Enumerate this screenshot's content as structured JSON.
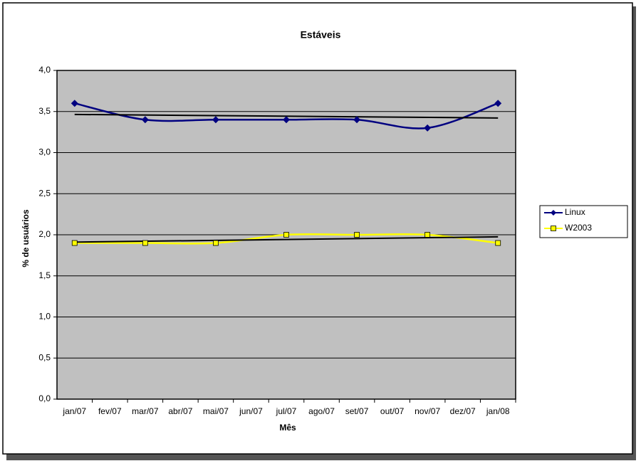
{
  "chart_data": {
    "type": "line",
    "title": "Estáveis",
    "y_label": "% de usuários",
    "x_label": "Mês",
    "xticks": [
      {
        "value": "2007-01",
        "label": "jan/07"
      },
      {
        "value": "2007-02",
        "label": "fev/07"
      },
      {
        "value": "2007-03",
        "label": "mar/07"
      },
      {
        "value": "2007-04",
        "label": "abr/07"
      },
      {
        "value": "2007-05",
        "label": "mai/07"
      },
      {
        "value": "2007-06",
        "label": "jun/07"
      },
      {
        "value": "2007-07",
        "label": "jul/07"
      },
      {
        "value": "2007-08",
        "label": "ago/07"
      },
      {
        "value": "2007-09",
        "label": "set/07"
      },
      {
        "value": "2007-10",
        "label": "out/07"
      },
      {
        "value": "2007-11",
        "label": "nov/07"
      },
      {
        "value": "2007-12",
        "label": "dez/07"
      },
      {
        "value": "2008-01",
        "label": "jan/08"
      }
    ],
    "series": [
      {
        "name": "Linux",
        "color": "#000080",
        "marker": "diamond",
        "x": [
          "2007-01",
          "2007-03",
          "2007-05",
          "2007-07",
          "2007-09",
          "2007-11",
          "2008-01"
        ],
        "values": [
          3.6,
          3.4,
          3.4,
          3.4,
          3.4,
          3.3,
          3.6
        ]
      },
      {
        "name": "W2003",
        "color": "#ffff00",
        "marker": "square",
        "x": [
          "2007-01",
          "2007-03",
          "2007-05",
          "2007-07",
          "2007-09",
          "2007-11",
          "2008-01"
        ],
        "values": [
          1.9,
          1.9,
          1.9,
          2.0,
          2.0,
          2.0,
          1.9
        ]
      }
    ],
    "ylim": [
      0,
      4
    ],
    "yticks": [
      {
        "value": 0,
        "label": "0,0"
      },
      {
        "value": 0.5,
        "label": "0,5"
      },
      {
        "value": 1,
        "label": "1,0"
      },
      {
        "value": 1.5,
        "label": "1,5"
      },
      {
        "value": 2,
        "label": "2,0"
      },
      {
        "value": 2.5,
        "label": "2,5"
      },
      {
        "value": 3,
        "label": "3,0"
      },
      {
        "value": 3.5,
        "label": "3,5"
      },
      {
        "value": 4,
        "label": "4,0"
      }
    ],
    "grid": true,
    "smooth": true,
    "trendline": "linear",
    "plot_background": "#c0c0c0",
    "legend": "right"
  }
}
